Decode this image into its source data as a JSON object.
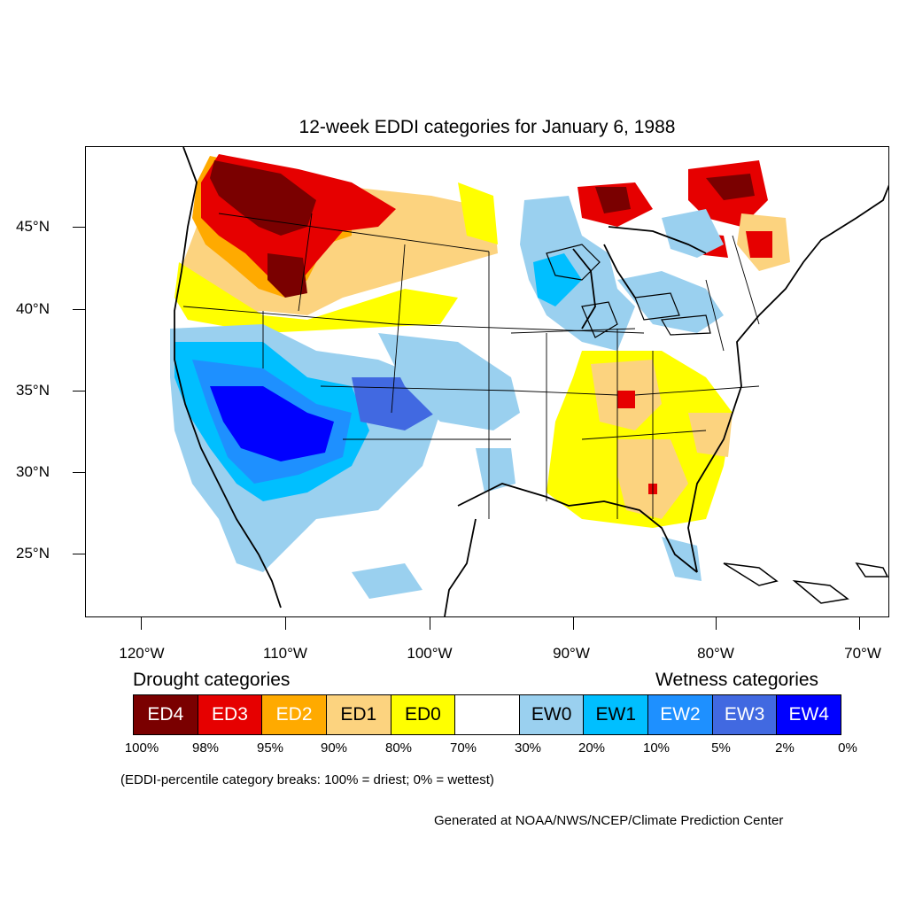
{
  "title": "12-week EDDI categories for January 6, 1988",
  "axes": {
    "lat_labels": [
      "45°N",
      "40°N",
      "35°N",
      "30°N",
      "25°N"
    ],
    "lon_labels": [
      "120°W",
      "110°W",
      "100°W",
      "90°W",
      "80°W",
      "70°W"
    ]
  },
  "legend": {
    "drought_heading": "Drought categories",
    "wetness_heading": "Wetness categories",
    "categories": [
      {
        "label": "ED4",
        "color": "#7a0000",
        "text_color": "#ffffff"
      },
      {
        "label": "ED3",
        "color": "#e60000",
        "text_color": "#ffffff"
      },
      {
        "label": "ED2",
        "color": "#ffaa00",
        "text_color": "#ffffff"
      },
      {
        "label": "ED1",
        "color": "#fcd37f",
        "text_color": "#000000"
      },
      {
        "label": "ED0",
        "color": "#ffff00",
        "text_color": "#000000"
      },
      {
        "label": "",
        "color": "#ffffff",
        "text_color": "#000000"
      },
      {
        "label": "EW0",
        "color": "#9ad0ef",
        "text_color": "#000000"
      },
      {
        "label": "EW1",
        "color": "#00bfff",
        "text_color": "#000000"
      },
      {
        "label": "EW2",
        "color": "#1e90ff",
        "text_color": "#ffffff"
      },
      {
        "label": "EW3",
        "color": "#4169e1",
        "text_color": "#ffffff"
      },
      {
        "label": "EW4",
        "color": "#0000ff",
        "text_color": "#ffffff"
      }
    ],
    "percent_breaks": [
      "100%",
      "98%",
      "95%",
      "90%",
      "80%",
      "70%",
      "30%",
      "20%",
      "10%",
      "5%",
      "2%",
      "0%"
    ]
  },
  "note": "(EDDI-percentile category breaks: 100% = driest; 0% = wettest)",
  "credit": "Generated at NOAA/NWS/NCEP/Climate Prediction Center"
}
